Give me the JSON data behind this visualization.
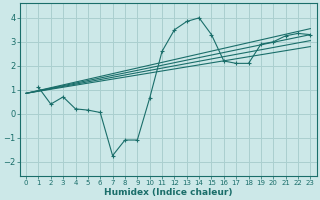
{
  "xlabel": "Humidex (Indice chaleur)",
  "bg_color": "#cce8e8",
  "grid_color": "#aacfcf",
  "line_color": "#1a6e6a",
  "xlim": [
    -0.5,
    23.5
  ],
  "ylim": [
    -2.6,
    4.6
  ],
  "xticks": [
    0,
    1,
    2,
    3,
    4,
    5,
    6,
    7,
    8,
    9,
    10,
    11,
    12,
    13,
    14,
    15,
    16,
    17,
    18,
    19,
    20,
    21,
    22,
    23
  ],
  "yticks": [
    -2,
    -1,
    0,
    1,
    2,
    3,
    4
  ],
  "series1_x": [
    1,
    2,
    3,
    4,
    5,
    6,
    7,
    8,
    9,
    10,
    11,
    12,
    13,
    14,
    15,
    16,
    17,
    18,
    19,
    20,
    21,
    22,
    23
  ],
  "series1_y": [
    1.1,
    0.4,
    0.7,
    0.2,
    0.15,
    0.05,
    -1.75,
    -1.1,
    -1.1,
    0.65,
    2.6,
    3.5,
    3.85,
    4.0,
    3.3,
    2.2,
    2.1,
    2.1,
    2.9,
    3.0,
    3.25,
    3.35,
    3.3
  ],
  "linear_lines": [
    {
      "x": [
        0,
        23
      ],
      "y": [
        0.85,
        3.3
      ]
    },
    {
      "x": [
        0,
        23
      ],
      "y": [
        0.85,
        3.05
      ]
    },
    {
      "x": [
        0,
        23
      ],
      "y": [
        0.85,
        2.8
      ]
    },
    {
      "x": [
        0,
        23
      ],
      "y": [
        0.85,
        3.55
      ]
    }
  ]
}
